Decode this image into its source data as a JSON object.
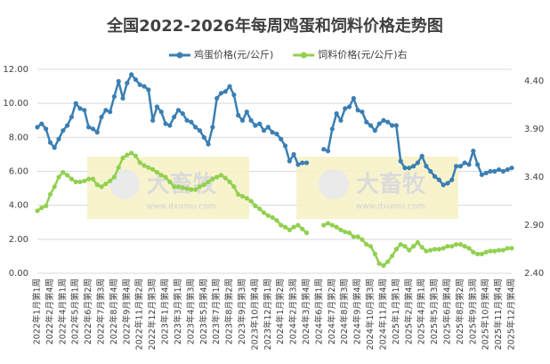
{
  "chart_data": {
    "type": "line",
    "title": "全国2022-2026年每周鸡蛋和饲料价格走势图",
    "watermark": {
      "name": "大畜牧",
      "url": "www.dxumu.com"
    },
    "categories": [
      "2022年1月第1周",
      null,
      null,
      "2022年2月第4周",
      null,
      null,
      "2022年4月第1周",
      null,
      null,
      "2022年5月第1周",
      null,
      null,
      "2022年6月第2周",
      null,
      null,
      "2022年7月第3周",
      null,
      null,
      "2022年8月第4周",
      null,
      null,
      "2022年9月第4周",
      null,
      null,
      "2022年11月第2周",
      null,
      null,
      "2022年12月第3周",
      null,
      null,
      "2023年1月第4周",
      null,
      null,
      "2023年3月第1周",
      null,
      null,
      "2023年4月第3周",
      null,
      null,
      "2023年5月第4周",
      null,
      null,
      "2023年7月第1周",
      null,
      null,
      "2023年8月第2周",
      null,
      null,
      "2023年9月第3周",
      null,
      null,
      "2023年10月第4周",
      null,
      null,
      "2023年12月第1周",
      null,
      null,
      "2024年1月第2周",
      null,
      null,
      "2024年2月第3周",
      null,
      null,
      "2024年3月第4周",
      null,
      null,
      "2024年6月第1周",
      null,
      null,
      "2024年7月第2周",
      null,
      null,
      "2024年8月第3周",
      null,
      null,
      "2024年9月第4周",
      null,
      null,
      "2024年10月第3周",
      null,
      null,
      "2024年11月第4周",
      null,
      null,
      "2025年1月第1周",
      null,
      null,
      "2025年2月第4周",
      null,
      null,
      "2025年4月第1周",
      null,
      null,
      "2025年5月第3周",
      null,
      null,
      "2025年6月第4周",
      null,
      null,
      "2025年8月第2周",
      null,
      null,
      "2025年9月第3周",
      null,
      null,
      "2025年10月第4周",
      null,
      null,
      "2025年11月第4周",
      null,
      null,
      "2025年12月第4周"
    ],
    "series": [
      {
        "name": "鸡蛋价格(元/公斤)",
        "color": "#3a7fb4",
        "values": [
          8.6,
          8.8,
          8.5,
          7.7,
          7.4,
          7.9,
          8.4,
          8.7,
          9.2,
          10.0,
          9.7,
          9.6,
          8.6,
          8.5,
          8.3,
          9.2,
          9.6,
          9.5,
          10.4,
          11.3,
          10.3,
          11.2,
          11.7,
          11.4,
          11.1,
          11.0,
          10.8,
          9.0,
          9.8,
          9.5,
          8.8,
          8.7,
          9.2,
          9.6,
          9.4,
          9.0,
          8.9,
          8.6,
          8.4,
          8.0,
          7.6,
          8.6,
          10.3,
          10.6,
          10.7,
          11.0,
          10.5,
          9.3,
          9.0,
          9.5,
          9.0,
          8.7,
          8.8,
          8.4,
          8.6,
          8.3,
          8.2,
          7.9,
          7.5,
          6.6,
          7.0,
          6.4,
          6.5,
          6.5,
          null,
          null,
          null,
          7.3,
          7.2,
          8.5,
          9.4,
          9.0,
          9.7,
          9.8,
          10.3,
          9.6,
          9.5,
          8.9,
          8.7,
          8.4,
          8.8,
          9.0,
          8.9,
          8.7,
          8.7,
          6.6,
          6.2,
          6.2,
          6.3,
          6.5,
          6.9,
          6.3,
          6.0,
          5.7,
          5.5,
          5.2,
          5.3,
          5.5,
          6.3,
          6.3,
          6.5,
          6.4,
          7.2,
          6.4,
          5.8,
          5.9,
          6.0,
          6.0,
          6.1,
          6.0,
          6.1,
          6.2
        ]
      },
      {
        "name": "饲料价格(元/公斤)右",
        "color": "#92d050",
        "axis": "y2",
        "values": [
          3.05,
          3.08,
          3.1,
          3.22,
          3.3,
          3.4,
          3.45,
          3.42,
          3.38,
          3.35,
          3.35,
          3.36,
          3.38,
          3.38,
          3.32,
          3.3,
          3.33,
          3.36,
          3.4,
          3.5,
          3.6,
          3.63,
          3.65,
          3.62,
          3.55,
          3.52,
          3.5,
          3.48,
          3.45,
          3.42,
          3.4,
          3.35,
          3.3,
          3.3,
          3.29,
          3.28,
          3.27,
          3.27,
          3.3,
          3.32,
          3.35,
          3.38,
          3.4,
          3.42,
          3.39,
          3.35,
          3.3,
          3.22,
          3.2,
          3.18,
          3.15,
          3.1,
          3.07,
          3.03,
          3.0,
          2.98,
          2.95,
          2.9,
          2.88,
          2.85,
          2.88,
          2.9,
          2.86,
          2.82,
          null,
          null,
          null,
          2.9,
          2.92,
          2.9,
          2.88,
          2.85,
          2.83,
          2.82,
          2.78,
          2.78,
          2.75,
          2.7,
          2.68,
          2.6,
          2.5,
          2.48,
          2.52,
          2.58,
          2.65,
          2.7,
          2.68,
          2.64,
          2.68,
          2.72,
          2.67,
          2.63,
          2.64,
          2.65,
          2.65,
          2.66,
          2.68,
          2.68,
          2.7,
          2.7,
          2.68,
          2.66,
          2.62,
          2.6,
          2.6,
          2.62,
          2.63,
          2.63,
          2.64,
          2.64,
          2.66,
          2.66
        ]
      }
    ],
    "ylim": [
      0,
      12
    ],
    "yticks": [
      {
        "value": 0,
        "label": "0.00"
      },
      {
        "value": 2,
        "label": "2.00"
      },
      {
        "value": 4,
        "label": "4.00"
      },
      {
        "value": 6,
        "label": "6.00"
      },
      {
        "value": 8,
        "label": "8.00"
      },
      {
        "value": 10,
        "label": "10.00"
      },
      {
        "value": 12,
        "label": "12.00"
      }
    ],
    "y2lim": [
      2.4,
      4.52
    ],
    "y2ticks": [
      {
        "value": 2.4,
        "label": "2.40"
      },
      {
        "value": 2.9,
        "label": "2.90"
      },
      {
        "value": 3.4,
        "label": "3.40"
      },
      {
        "value": 3.9,
        "label": "3.90"
      },
      {
        "value": 4.4,
        "label": "4.40"
      }
    ],
    "grid": true,
    "legend": "top"
  }
}
